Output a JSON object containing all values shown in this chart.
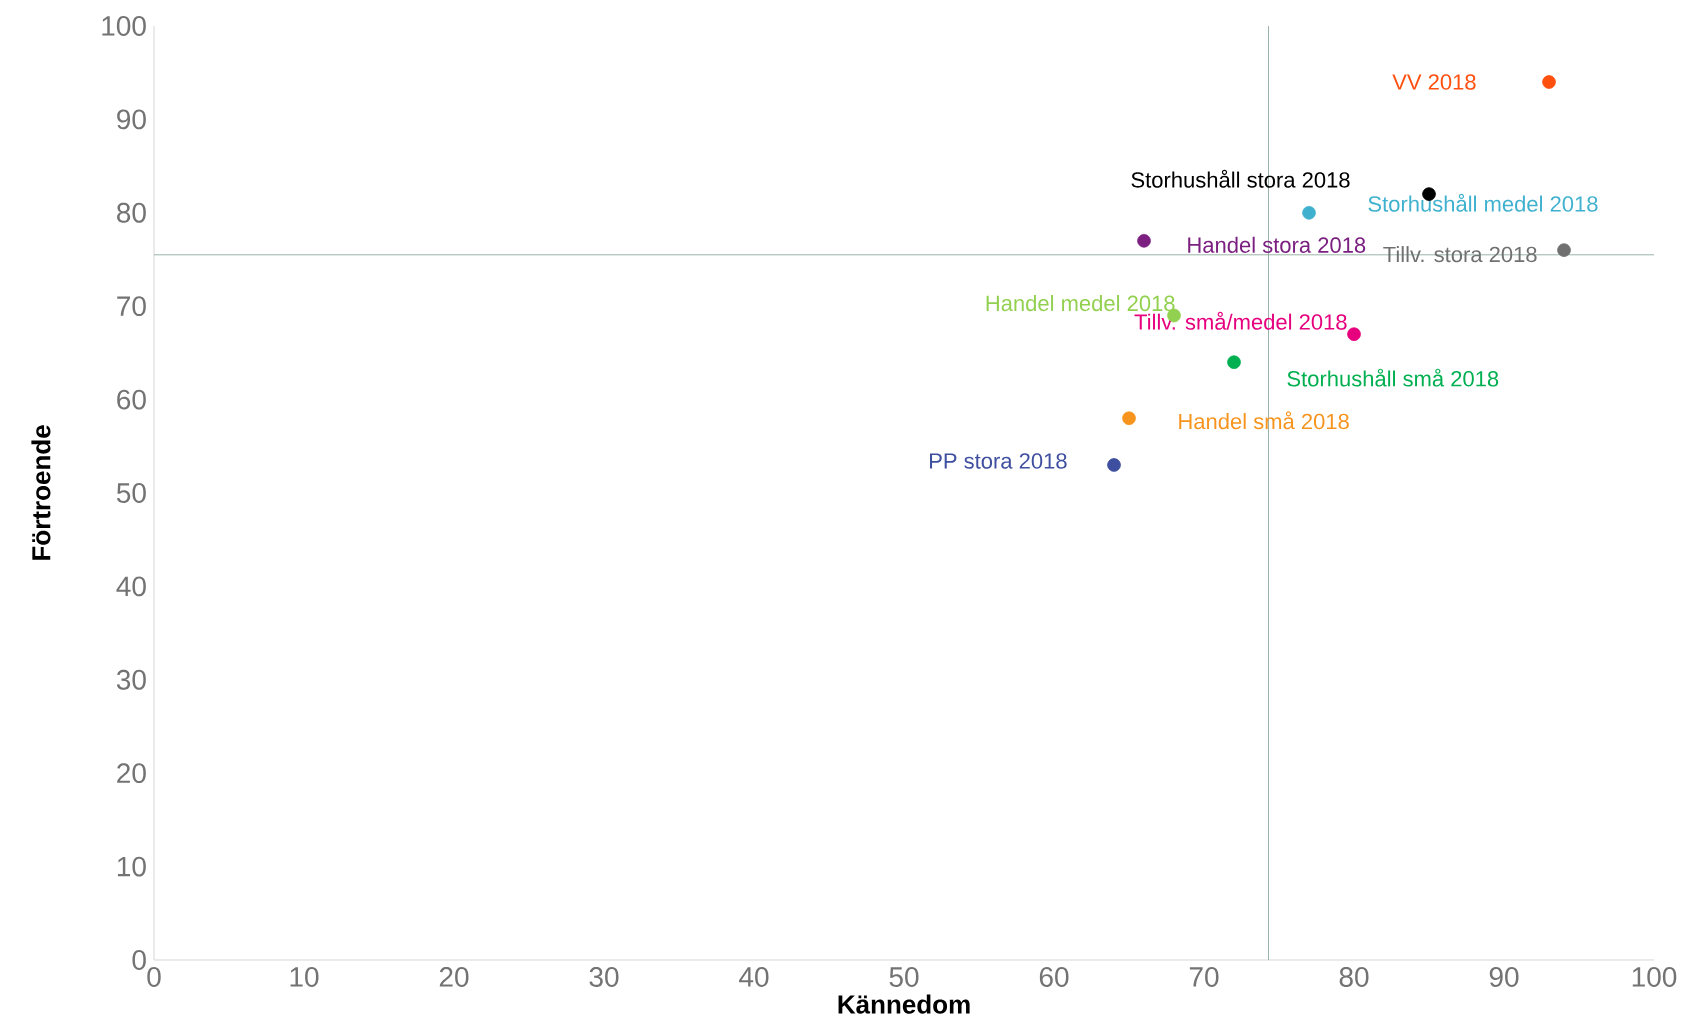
{
  "chart_data": {
    "type": "scatter",
    "xlabel": "Kännedom",
    "ylabel": "Förtroende",
    "xlim": [
      0,
      100
    ],
    "ylim": [
      0,
      100
    ],
    "xticks": [
      0,
      10,
      20,
      30,
      40,
      50,
      60,
      70,
      80,
      90,
      100
    ],
    "yticks": [
      0,
      10,
      20,
      30,
      40,
      50,
      60,
      70,
      80,
      90,
      100
    ],
    "grid": false,
    "ref_lines": [
      {
        "axis": "x",
        "value": 74.3,
        "color": "#7f9f8f"
      },
      {
        "axis": "y",
        "value": 75.5,
        "color": "#7f9f8f"
      }
    ],
    "series": [
      {
        "name": "VV 2018",
        "color": "#ff5010",
        "x": [
          93
        ],
        "values": [
          94
        ]
      },
      {
        "name": "Storhushåll stora 2018",
        "color": "#000000",
        "x": [
          85
        ],
        "values": [
          82
        ]
      },
      {
        "name": "Storhushåll medel 2018",
        "color": "#3fb1cf",
        "x": [
          77
        ],
        "values": [
          80
        ]
      },
      {
        "name": "Handel stora 2018",
        "color": "#7b2080",
        "x": [
          66
        ],
        "values": [
          77
        ]
      },
      {
        "name": "Tillv. stora 2018",
        "color": "#707070",
        "x": [
          94
        ],
        "values": [
          76
        ]
      },
      {
        "name": "Handel medel 2018",
        "color": "#92d050",
        "x": [
          68
        ],
        "values": [
          69
        ]
      },
      {
        "name": "Tillv. små/medel 2018",
        "color": "#e6007e",
        "x": [
          80
        ],
        "values": [
          67
        ]
      },
      {
        "name": "Storhushåll små 2018",
        "color": "#00b050",
        "x": [
          72
        ],
        "values": [
          64
        ]
      },
      {
        "name": "Handel små 2018",
        "color": "#f7941d",
        "x": [
          65
        ],
        "values": [
          58
        ]
      },
      {
        "name": "PP stora 2018",
        "color": "#3f4fa0",
        "x": [
          64
        ],
        "values": [
          53
        ]
      }
    ]
  }
}
